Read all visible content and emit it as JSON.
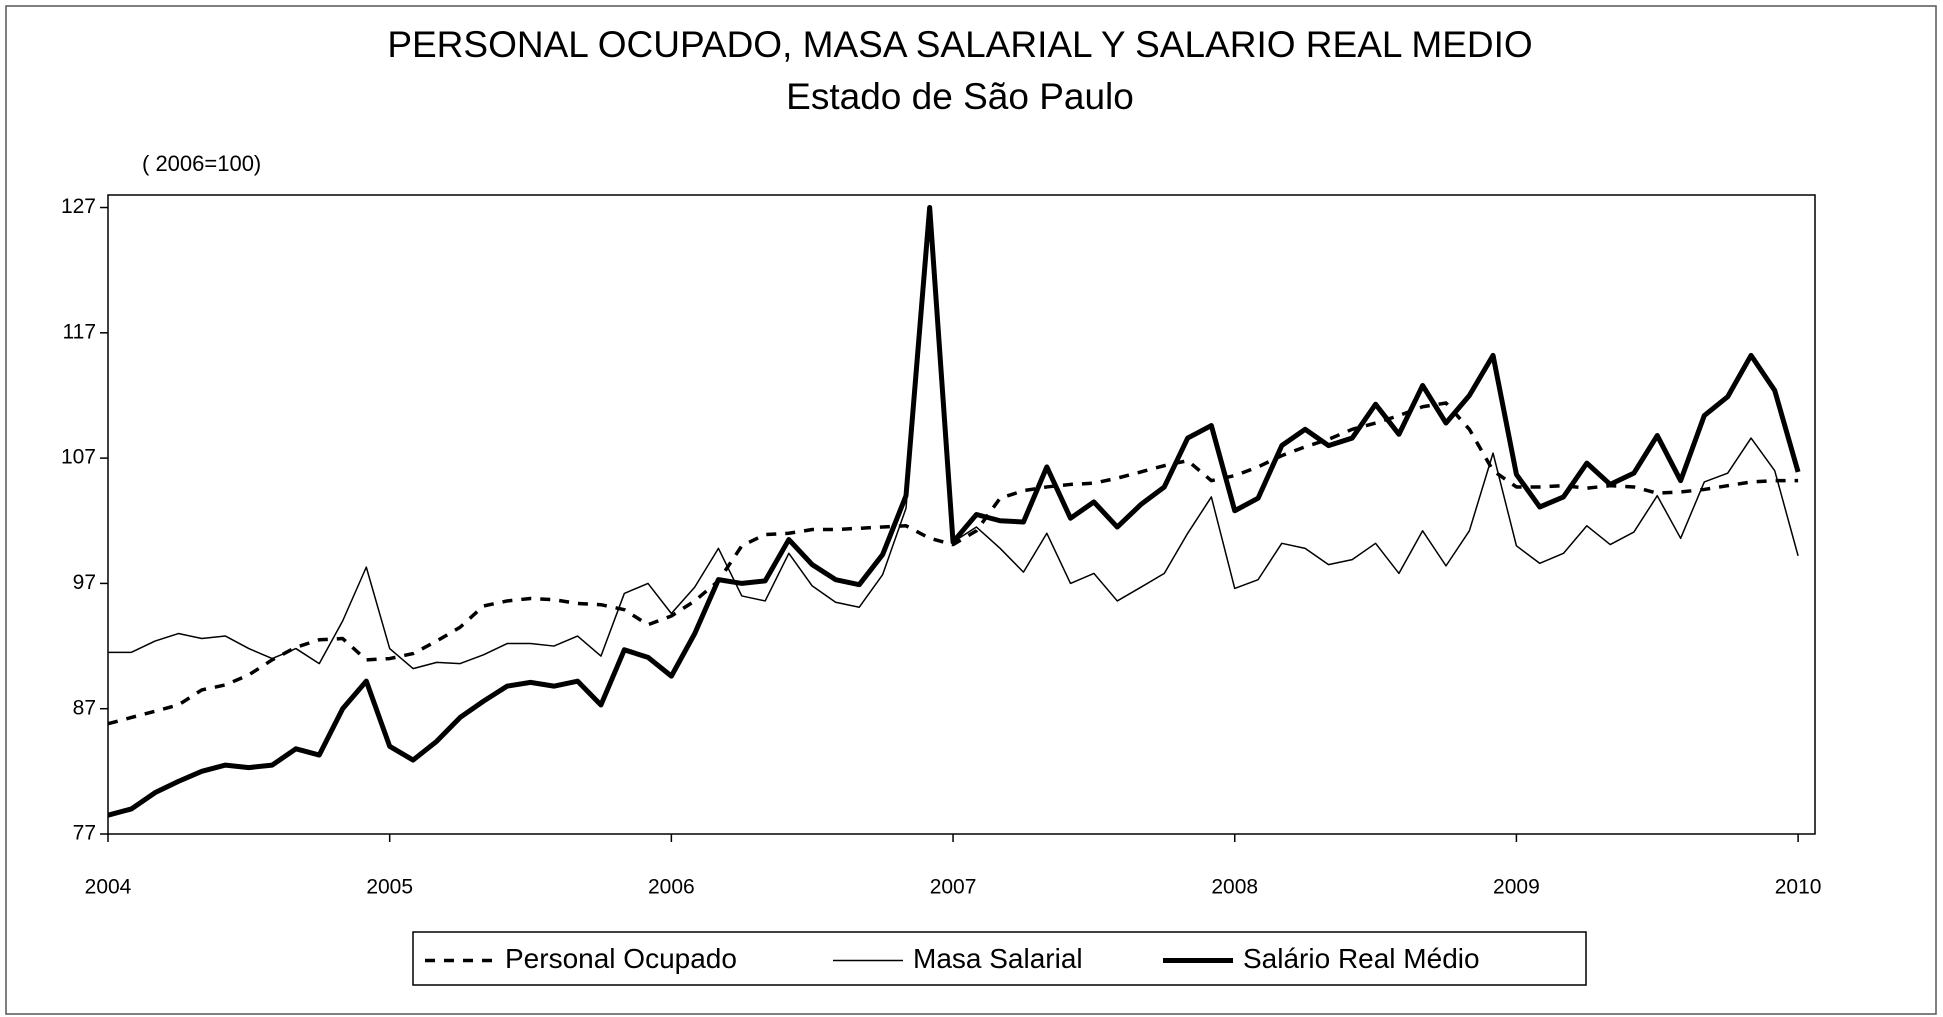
{
  "chart_data": {
    "type": "line",
    "title": "PERSONAL OCUPADO, MASA SALARIAL Y SALARIO REAL MEDIO",
    "subtitle": "Estado de São Paulo",
    "y_label": "( 2006=100)",
    "x": [
      2004,
      2004.083,
      2004.167,
      2004.25,
      2004.333,
      2004.417,
      2004.5,
      2004.583,
      2004.667,
      2004.75,
      2004.833,
      2004.917,
      2005,
      2005.083,
      2005.167,
      2005.25,
      2005.333,
      2005.417,
      2005.5,
      2005.583,
      2005.667,
      2005.75,
      2005.833,
      2005.917,
      2006,
      2006.083,
      2006.167,
      2006.25,
      2006.333,
      2006.417,
      2006.5,
      2006.583,
      2006.667,
      2006.75,
      2006.833,
      2006.917,
      2007,
      2007.083,
      2007.167,
      2007.25,
      2007.333,
      2007.417,
      2007.5,
      2007.583,
      2007.667,
      2007.75,
      2007.833,
      2007.917,
      2008,
      2008.083,
      2008.167,
      2008.25,
      2008.333,
      2008.417,
      2008.5,
      2008.583,
      2008.667,
      2008.75,
      2008.833,
      2008.917,
      2009,
      2009.083,
      2009.167,
      2009.25,
      2009.333,
      2009.417,
      2009.5,
      2009.583,
      2009.667,
      2009.75,
      2009.833,
      2009.917,
      2010
    ],
    "series": [
      {
        "name": "Personal Ocupado",
        "color": "#000000",
        "values": [
          85.8,
          86.3,
          86.8,
          87.3,
          88.5,
          88.9,
          89.7,
          90.9,
          91.9,
          92.5,
          92.6,
          90.9,
          91,
          91.4,
          92.4,
          93.5,
          95.2,
          95.6,
          95.8,
          95.7,
          95.4,
          95.3,
          94.9,
          93.7,
          94.4,
          95.6,
          97.2,
          100,
          100.9,
          101,
          101.3,
          101.3,
          101.4,
          101.5,
          101.6,
          100.6,
          100.1,
          101.2,
          103.8,
          104.4,
          104.7,
          104.9,
          105,
          105.4,
          105.9,
          106.4,
          106.8,
          105.2,
          105.6,
          106.3,
          107.2,
          107.9,
          108.5,
          109.3,
          109.8,
          110.4,
          111.1,
          111.4,
          109.3,
          106,
          104.7,
          104.7,
          104.8,
          104.6,
          104.8,
          104.7,
          104.2,
          104.3,
          104.5,
          104.8,
          105.1,
          105.2,
          105.2
        ]
      },
      {
        "name": "Masa Salarial",
        "color": "#000000",
        "values": [
          91.5,
          91.5,
          92.4,
          93,
          92.6,
          92.8,
          91.8,
          91,
          91.8,
          90.6,
          94,
          98.3,
          91.8,
          90.2,
          90.7,
          90.6,
          91.3,
          92.2,
          92.2,
          92,
          92.8,
          91.2,
          96.2,
          97,
          94.6,
          96.7,
          99.8,
          96,
          95.6,
          99.4,
          96.8,
          95.5,
          95.1,
          97.7,
          103,
          126.5,
          100.3,
          101.5,
          99.8,
          97.9,
          101,
          97,
          97.8,
          95.6,
          96.7,
          97.8,
          101,
          103.9,
          96.6,
          97.3,
          100.2,
          99.8,
          98.5,
          98.9,
          100.2,
          97.8,
          101.2,
          98.4,
          101.2,
          107.4,
          100,
          98.6,
          99.4,
          101.6,
          100.1,
          101.1,
          104,
          100.6,
          105.1,
          105.8,
          108.6,
          106,
          99.2
        ]
      },
      {
        "name": "Salário Real Médio",
        "color": "#000000",
        "values": [
          78.5,
          79,
          80.3,
          81.2,
          82,
          82.5,
          82.3,
          82.5,
          83.8,
          83.3,
          87,
          89.2,
          84,
          82.9,
          84.4,
          86.3,
          87.6,
          88.8,
          89.1,
          88.8,
          89.2,
          87.3,
          91.7,
          91.1,
          89.6,
          93,
          97.3,
          97,
          97.2,
          100.5,
          98.5,
          97.3,
          96.9,
          99.3,
          104,
          127,
          100.3,
          102.5,
          102,
          101.9,
          106.3,
          102.2,
          103.5,
          101.5,
          103.3,
          104.7,
          108.6,
          109.6,
          102.8,
          103.8,
          108,
          109.3,
          108,
          108.6,
          111.3,
          108.9,
          112.8,
          109.8,
          112,
          115.2,
          105.7,
          103.1,
          103.9,
          106.6,
          104.9,
          105.8,
          108.8,
          105.2,
          110.4,
          111.9,
          115.2,
          112.4,
          105.9
        ]
      }
    ],
    "xlim": [
      2004,
      2010.06
    ],
    "xticks": [
      2004,
      2005,
      2006,
      2007,
      2008,
      2009,
      2010
    ],
    "ylim": [
      77,
      128
    ],
    "yticks": [
      77,
      87,
      97,
      107,
      117,
      127
    ],
    "grid": false,
    "legend": "bottom"
  }
}
